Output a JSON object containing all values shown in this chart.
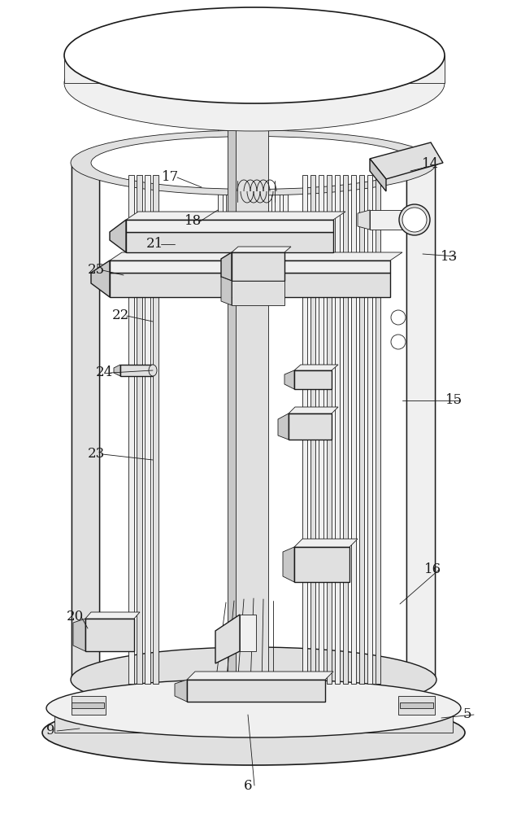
{
  "bg_color": "#ffffff",
  "lc": "#1a1a1a",
  "lw": 1.0,
  "lw_thin": 0.6,
  "lw_thick": 1.2,
  "fill_white": "#ffffff",
  "fill_light": "#f0f0f0",
  "fill_mid": "#e0e0e0",
  "fill_dark": "#c8c8c8",
  "fill_darker": "#b0b0b0",
  "labels": [
    [
      "5",
      575,
      878
    ],
    [
      "6",
      305,
      965
    ],
    [
      "9",
      62,
      898
    ],
    [
      "13",
      553,
      315
    ],
    [
      "14",
      530,
      202
    ],
    [
      "15",
      558,
      492
    ],
    [
      "16",
      532,
      700
    ],
    [
      "17",
      210,
      218
    ],
    [
      "18",
      238,
      272
    ],
    [
      "20",
      92,
      758
    ],
    [
      "21",
      190,
      300
    ],
    [
      "22",
      148,
      388
    ],
    [
      "23",
      118,
      558
    ],
    [
      "24",
      128,
      458
    ],
    [
      "25",
      118,
      332
    ]
  ],
  "leaders": [
    [
      "17",
      210,
      218,
      248,
      230
    ],
    [
      "18",
      238,
      272,
      268,
      258
    ],
    [
      "21",
      190,
      300,
      215,
      300
    ],
    [
      "25",
      118,
      332,
      152,
      338
    ],
    [
      "22",
      148,
      388,
      188,
      395
    ],
    [
      "24",
      128,
      458,
      188,
      455
    ],
    [
      "23",
      118,
      558,
      188,
      565
    ],
    [
      "20",
      92,
      758,
      108,
      772
    ],
    [
      "9",
      62,
      898,
      98,
      895
    ],
    [
      "6",
      305,
      965,
      305,
      878
    ],
    [
      "5",
      575,
      878,
      543,
      882
    ],
    [
      "13",
      553,
      315,
      520,
      312
    ],
    [
      "14",
      530,
      202,
      505,
      210
    ],
    [
      "15",
      558,
      492,
      495,
      492
    ],
    [
      "16",
      532,
      700,
      492,
      742
    ]
  ]
}
